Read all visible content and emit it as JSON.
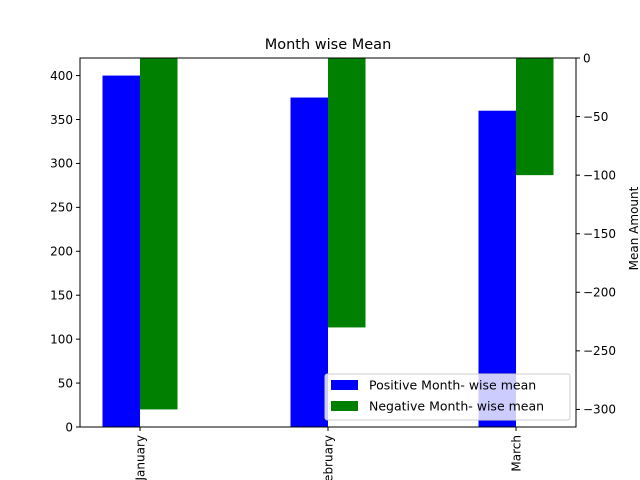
{
  "chart_data": {
    "type": "bar",
    "title": "Month wise Mean",
    "xlabel": "",
    "ylabel_left": "",
    "ylabel_right": "Mean Amount",
    "categories": [
      "January",
      "February",
      "March"
    ],
    "series": [
      {
        "name": "Positive Month- wise mean",
        "axis": "left",
        "color": "#0000ff",
        "values": [
          400,
          375,
          360
        ]
      },
      {
        "name": "Negative Month- wise mean",
        "axis": "right",
        "color": "#008000",
        "values": [
          -300,
          -230,
          -100
        ]
      }
    ],
    "left_axis": {
      "ylim": [
        0,
        420
      ],
      "ticks": [
        0,
        50,
        100,
        150,
        200,
        250,
        300,
        350,
        400
      ]
    },
    "right_axis": {
      "ylim": [
        -315,
        0
      ],
      "ticks": [
        0,
        -50,
        -100,
        -150,
        -200,
        -250,
        -300
      ]
    },
    "grid": false,
    "legend_position": "bottom-right",
    "xtick_rotation": 90
  }
}
